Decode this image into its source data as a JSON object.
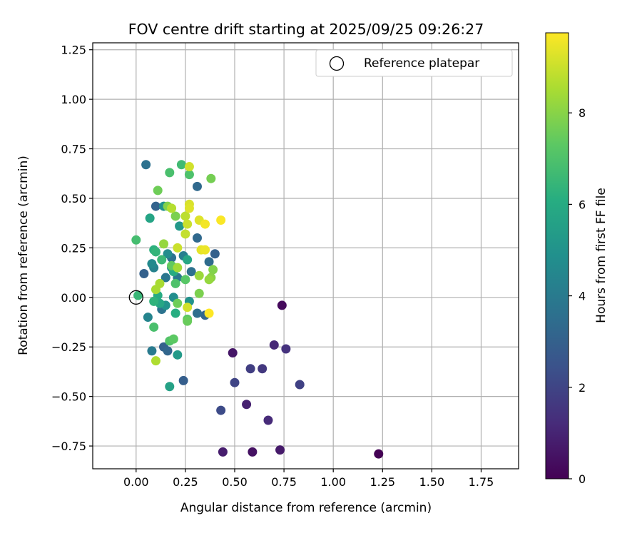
{
  "chart_data": {
    "type": "scatter",
    "title": "FOV centre drift starting at 2025/09/25 09:26:27",
    "xlabel": "Angular distance from reference (arcmin)",
    "ylabel": "Rotation from reference (arcmin)",
    "xlim": [
      -0.22,
      1.94
    ],
    "ylim": [
      -0.865,
      1.285
    ],
    "xticks": [
      "0.00",
      "0.25",
      "0.50",
      "0.75",
      "1.00",
      "1.25",
      "1.50",
      "1.75"
    ],
    "yticks": [
      "−0.75",
      "−0.50",
      "−0.25",
      "0.00",
      "0.25",
      "0.50",
      "0.75",
      "1.00",
      "1.25"
    ],
    "grid": true,
    "legend": {
      "placement": "top-right",
      "entries": [
        "Reference platepar"
      ]
    },
    "reference_point": {
      "x": 0.0,
      "y": 0.0,
      "marker": "open-circle"
    },
    "colorbar": {
      "label": "Hours from first FF file",
      "colormap": "viridis",
      "range": [
        0,
        9.75
      ],
      "ticks": [
        "0",
        "2",
        "4",
        "6",
        "8"
      ]
    },
    "points": [
      {
        "x": 1.23,
        "y": -0.79,
        "h": 0.0
      },
      {
        "x": 0.74,
        "y": -0.04,
        "h": 0.25
      },
      {
        "x": 0.59,
        "y": -0.78,
        "h": 0.45
      },
      {
        "x": 0.73,
        "y": -0.77,
        "h": 0.7
      },
      {
        "x": 0.44,
        "y": -0.78,
        "h": 0.8
      },
      {
        "x": 0.56,
        "y": -0.54,
        "h": 0.9
      },
      {
        "x": 0.49,
        "y": -0.28,
        "h": 0.6
      },
      {
        "x": 0.7,
        "y": -0.24,
        "h": 1.1
      },
      {
        "x": 0.76,
        "y": -0.26,
        "h": 1.4
      },
      {
        "x": 0.67,
        "y": -0.62,
        "h": 1.2
      },
      {
        "x": 0.64,
        "y": -0.36,
        "h": 1.6
      },
      {
        "x": 0.58,
        "y": -0.36,
        "h": 1.8
      },
      {
        "x": 0.83,
        "y": -0.44,
        "h": 1.9
      },
      {
        "x": 0.5,
        "y": -0.43,
        "h": 2.0
      },
      {
        "x": 0.43,
        "y": -0.57,
        "h": 2.2
      },
      {
        "x": 0.24,
        "y": -0.42,
        "h": 2.9
      },
      {
        "x": 0.05,
        "y": 0.67,
        "h": 3.6
      },
      {
        "x": 0.04,
        "y": 0.12,
        "h": 3.0
      },
      {
        "x": 0.1,
        "y": 0.46,
        "h": 3.1
      },
      {
        "x": 0.14,
        "y": -0.25,
        "h": 3.0
      },
      {
        "x": 0.16,
        "y": -0.27,
        "h": 3.2
      },
      {
        "x": 0.31,
        "y": 0.56,
        "h": 3.3
      },
      {
        "x": 0.31,
        "y": 0.3,
        "h": 3.3
      },
      {
        "x": 0.37,
        "y": 0.18,
        "h": 3.4
      },
      {
        "x": 0.4,
        "y": 0.22,
        "h": 3.0
      },
      {
        "x": 0.35,
        "y": -0.09,
        "h": 3.2
      },
      {
        "x": 0.31,
        "y": -0.08,
        "h": 3.5
      },
      {
        "x": 0.18,
        "y": 0.2,
        "h": 3.6
      },
      {
        "x": 0.13,
        "y": -0.06,
        "h": 3.7
      },
      {
        "x": 0.15,
        "y": 0.1,
        "h": 3.8
      },
      {
        "x": 0.28,
        "y": 0.13,
        "h": 3.6
      },
      {
        "x": 0.21,
        "y": 0.1,
        "h": 3.9
      },
      {
        "x": 0.24,
        "y": 0.21,
        "h": 4.2
      },
      {
        "x": 0.08,
        "y": -0.27,
        "h": 4.0
      },
      {
        "x": 0.06,
        "y": -0.1,
        "h": 4.4
      },
      {
        "x": 0.09,
        "y": 0.15,
        "h": 4.3
      },
      {
        "x": 0.08,
        "y": 0.17,
        "h": 4.6
      },
      {
        "x": 0.18,
        "y": 0.15,
        "h": 4.5
      },
      {
        "x": 0.16,
        "y": 0.22,
        "h": 4.7
      },
      {
        "x": 0.19,
        "y": 0.0,
        "h": 4.8
      },
      {
        "x": 0.14,
        "y": 0.46,
        "h": 4.9
      },
      {
        "x": 0.27,
        "y": -0.02,
        "h": 5.0
      },
      {
        "x": 0.15,
        "y": -0.04,
        "h": 5.0
      },
      {
        "x": 0.22,
        "y": 0.36,
        "h": 5.2
      },
      {
        "x": 0.21,
        "y": -0.29,
        "h": 5.3
      },
      {
        "x": 0.17,
        "y": -0.45,
        "h": 5.6
      },
      {
        "x": 0.07,
        "y": 0.4,
        "h": 5.7
      },
      {
        "x": 0.26,
        "y": 0.19,
        "h": 5.8
      },
      {
        "x": 0.12,
        "y": -0.03,
        "h": 5.8
      },
      {
        "x": 0.19,
        "y": 0.13,
        "h": 6.0
      },
      {
        "x": 0.2,
        "y": -0.08,
        "h": 6.1
      },
      {
        "x": 0.11,
        "y": 0.01,
        "h": 6.0
      },
      {
        "x": 0.09,
        "y": -0.02,
        "h": 6.3
      },
      {
        "x": 0.09,
        "y": 0.24,
        "h": 6.2
      },
      {
        "x": 0.1,
        "y": 0.23,
        "h": 6.4
      },
      {
        "x": 0.01,
        "y": 0.01,
        "h": 6.5
      },
      {
        "x": 0.13,
        "y": 0.19,
        "h": 6.6
      },
      {
        "x": 0.0,
        "y": 0.29,
        "h": 6.8
      },
      {
        "x": 0.23,
        "y": 0.67,
        "h": 6.7
      },
      {
        "x": 0.27,
        "y": 0.62,
        "h": 7.0
      },
      {
        "x": 0.17,
        "y": 0.63,
        "h": 6.9
      },
      {
        "x": 0.09,
        "y": -0.15,
        "h": 6.9
      },
      {
        "x": 0.2,
        "y": 0.07,
        "h": 7.0
      },
      {
        "x": 0.25,
        "y": 0.09,
        "h": 7.2
      },
      {
        "x": 0.17,
        "y": -0.22,
        "h": 7.1
      },
      {
        "x": 0.19,
        "y": -0.21,
        "h": 7.3
      },
      {
        "x": 0.26,
        "y": -0.11,
        "h": 7.3
      },
      {
        "x": 0.26,
        "y": -0.12,
        "h": 7.5
      },
      {
        "x": 0.18,
        "y": 0.16,
        "h": 7.4
      },
      {
        "x": 0.21,
        "y": -0.03,
        "h": 7.6
      },
      {
        "x": 0.38,
        "y": 0.6,
        "h": 7.7
      },
      {
        "x": 0.11,
        "y": 0.54,
        "h": 7.6
      },
      {
        "x": 0.2,
        "y": 0.41,
        "h": 7.8
      },
      {
        "x": 0.16,
        "y": 0.46,
        "h": 7.9
      },
      {
        "x": 0.32,
        "y": 0.02,
        "h": 7.8
      },
      {
        "x": 0.39,
        "y": 0.14,
        "h": 7.9
      },
      {
        "x": 0.38,
        "y": 0.1,
        "h": 8.0
      },
      {
        "x": 0.37,
        "y": 0.09,
        "h": 8.2
      },
      {
        "x": 0.32,
        "y": 0.11,
        "h": 8.3
      },
      {
        "x": 0.14,
        "y": 0.27,
        "h": 8.2
      },
      {
        "x": 0.21,
        "y": 0.15,
        "h": 8.4
      },
      {
        "x": 0.12,
        "y": 0.07,
        "h": 8.5
      },
      {
        "x": 0.1,
        "y": 0.04,
        "h": 8.5
      },
      {
        "x": 0.1,
        "y": -0.32,
        "h": 8.6
      },
      {
        "x": 0.18,
        "y": 0.45,
        "h": 8.7
      },
      {
        "x": 0.25,
        "y": 0.41,
        "h": 8.8
      },
      {
        "x": 0.25,
        "y": 0.32,
        "h": 8.9
      },
      {
        "x": 0.26,
        "y": 0.37,
        "h": 9.0
      },
      {
        "x": 0.26,
        "y": -0.05,
        "h": 9.1
      },
      {
        "x": 0.21,
        "y": 0.25,
        "h": 9.0
      },
      {
        "x": 0.27,
        "y": 0.47,
        "h": 9.2
      },
      {
        "x": 0.27,
        "y": 0.45,
        "h": 9.3
      },
      {
        "x": 0.27,
        "y": 0.66,
        "h": 9.1
      },
      {
        "x": 0.32,
        "y": 0.39,
        "h": 9.3
      },
      {
        "x": 0.33,
        "y": 0.24,
        "h": 9.4
      },
      {
        "x": 0.35,
        "y": 0.24,
        "h": 9.5
      },
      {
        "x": 0.35,
        "y": 0.37,
        "h": 9.6
      },
      {
        "x": 0.43,
        "y": 0.39,
        "h": 9.7
      },
      {
        "x": 0.37,
        "y": -0.08,
        "h": 9.75
      }
    ]
  }
}
